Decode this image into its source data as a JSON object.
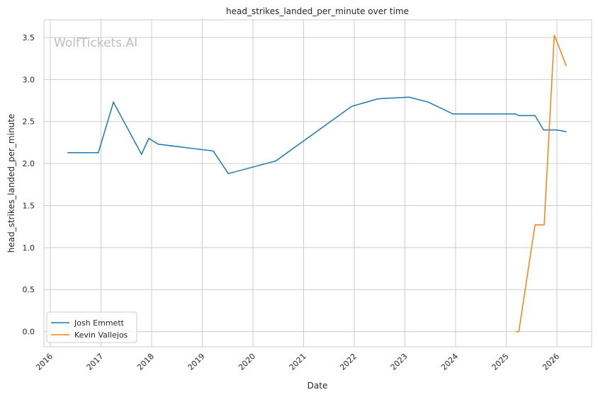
{
  "chart_data": {
    "type": "line",
    "title": "head_strikes_landed_per_minute over time",
    "xlabel": "Date",
    "ylabel": "head_strikes_landed_per_minute",
    "watermark": "WolfTickets.AI",
    "x_ticks": [
      "2016",
      "2017",
      "2018",
      "2019",
      "2020",
      "2021",
      "2022",
      "2023",
      "2024",
      "2025",
      "2026"
    ],
    "y_ticks": [
      "0.0",
      "0.5",
      "1.0",
      "1.5",
      "2.0",
      "2.5",
      "3.0",
      "3.5"
    ],
    "xlim": [
      "2015-11-16",
      "2026-09-08"
    ],
    "ylim": [
      -0.18,
      3.71
    ],
    "grid": true,
    "legend_position": "lower-left",
    "series": [
      {
        "name": "Josh Emmett",
        "color": "#1f77b4",
        "x": [
          "2016-05-04",
          "2016-12-13",
          "2017-04-01",
          "2017-10-20",
          "2017-12-12",
          "2018-02-17",
          "2019-03-20",
          "2019-07-08",
          "2020-06-13",
          "2021-12-13",
          "2022-06-20",
          "2023-01-30",
          "2023-06-20",
          "2023-12-13",
          "2025-03-10",
          "2025-04-01",
          "2025-07-27",
          "2025-09-27",
          "2026-01-01",
          "2026-03-10"
        ],
        "y": [
          2.13,
          2.13,
          2.73,
          2.11,
          2.3,
          2.23,
          2.15,
          1.88,
          2.03,
          2.68,
          2.77,
          2.79,
          2.73,
          2.59,
          2.59,
          2.57,
          2.57,
          2.4,
          2.4,
          2.38
        ]
      },
      {
        "name": "Kevin Vallejos",
        "color": "#ff7f0e",
        "x": [
          "2025-03-08",
          "2025-04-01",
          "2025-07-27",
          "2025-10-01",
          "2025-12-13",
          "2026-03-10"
        ],
        "y": [
          0.0,
          0.0,
          1.27,
          1.27,
          3.53,
          3.16
        ]
      }
    ]
  }
}
